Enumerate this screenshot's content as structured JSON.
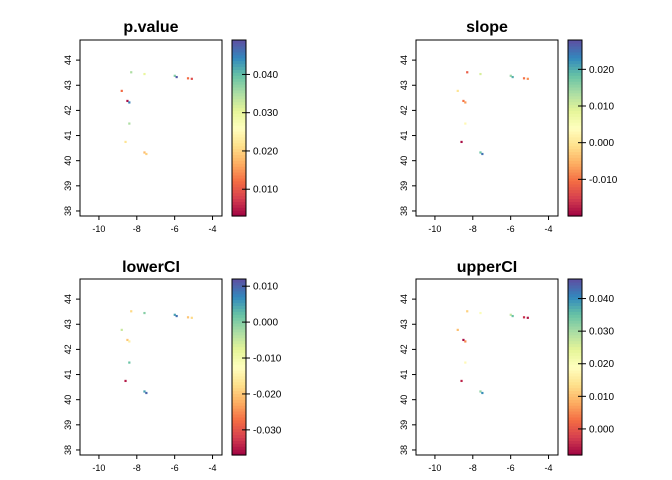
{
  "chart_data": [
    {
      "type": "heatmap",
      "title": "p.value",
      "xlim": [
        -11,
        -3.5
      ],
      "ylim": [
        37.8,
        44.8
      ],
      "xticks": [
        -10,
        -8,
        -6,
        -4
      ],
      "yticks": [
        38,
        39,
        40,
        41,
        42,
        43,
        44
      ],
      "colorbar": {
        "range": [
          0.003,
          0.049
        ],
        "ticks": [
          0.01,
          0.02,
          0.03,
          0.04
        ],
        "tick_labels": [
          "0.010",
          "0.020",
          "0.030",
          "0.040"
        ]
      },
      "points": [
        {
          "x": -8.3,
          "y": 43.52,
          "value": 0.035
        },
        {
          "x": -7.6,
          "y": 43.45,
          "value": 0.03
        },
        {
          "x": -6.0,
          "y": 43.38,
          "value": 0.038
        },
        {
          "x": -5.9,
          "y": 43.33,
          "value": 0.048
        },
        {
          "x": -5.3,
          "y": 43.28,
          "value": 0.012
        },
        {
          "x": -5.1,
          "y": 43.26,
          "value": 0.009
        },
        {
          "x": -8.8,
          "y": 42.78,
          "value": 0.012
        },
        {
          "x": -8.5,
          "y": 42.38,
          "value": 0.004
        },
        {
          "x": -8.4,
          "y": 42.32,
          "value": 0.045
        },
        {
          "x": -8.4,
          "y": 41.48,
          "value": 0.035
        },
        {
          "x": -8.6,
          "y": 40.75,
          "value": 0.022
        },
        {
          "x": -7.6,
          "y": 40.33,
          "value": 0.018
        },
        {
          "x": -7.5,
          "y": 40.27,
          "value": 0.02
        }
      ]
    },
    {
      "type": "heatmap",
      "title": "slope",
      "xlim": [
        -11,
        -3.5
      ],
      "ylim": [
        37.8,
        44.8
      ],
      "xticks": [
        -10,
        -8,
        -6,
        -4
      ],
      "yticks": [
        38,
        39,
        40,
        41,
        42,
        43,
        44
      ],
      "colorbar": {
        "range": [
          -0.02,
          0.028
        ],
        "ticks": [
          -0.01,
          0.0,
          0.01,
          0.02
        ],
        "tick_labels": [
          "-0.010",
          "0.000",
          "0.010",
          "0.020"
        ]
      },
      "points": [
        {
          "x": -8.3,
          "y": 43.52,
          "value": -0.012
        },
        {
          "x": -7.6,
          "y": 43.45,
          "value": 0.01
        },
        {
          "x": -6.0,
          "y": 43.38,
          "value": 0.015
        },
        {
          "x": -5.9,
          "y": 43.33,
          "value": 0.02
        },
        {
          "x": -5.3,
          "y": 43.28,
          "value": -0.01
        },
        {
          "x": -5.1,
          "y": 43.26,
          "value": -0.008
        },
        {
          "x": -8.8,
          "y": 42.78,
          "value": 0.0
        },
        {
          "x": -8.5,
          "y": 42.38,
          "value": -0.01
        },
        {
          "x": -8.4,
          "y": 42.32,
          "value": -0.007
        },
        {
          "x": -8.4,
          "y": 41.48,
          "value": 0.003
        },
        {
          "x": -8.6,
          "y": 40.75,
          "value": -0.019
        },
        {
          "x": -7.6,
          "y": 40.33,
          "value": 0.018
        },
        {
          "x": -7.5,
          "y": 40.27,
          "value": 0.025
        }
      ]
    },
    {
      "type": "heatmap",
      "title": "lowerCI",
      "xlim": [
        -11,
        -3.5
      ],
      "ylim": [
        37.8,
        44.8
      ],
      "xticks": [
        -10,
        -8,
        -6,
        -4
      ],
      "yticks": [
        38,
        39,
        40,
        41,
        42,
        43,
        44
      ],
      "colorbar": {
        "range": [
          -0.037,
          0.012
        ],
        "ticks": [
          -0.03,
          -0.02,
          -0.01,
          0.0,
          0.01
        ],
        "tick_labels": [
          "-0.030",
          "-0.020",
          "-0.010",
          "0.000",
          "0.010"
        ]
      },
      "points": [
        {
          "x": -8.3,
          "y": 43.52,
          "value": -0.018
        },
        {
          "x": -7.6,
          "y": 43.45,
          "value": 0.0
        },
        {
          "x": -6.0,
          "y": 43.38,
          "value": 0.005
        },
        {
          "x": -5.9,
          "y": 43.33,
          "value": 0.009
        },
        {
          "x": -5.3,
          "y": 43.28,
          "value": -0.02
        },
        {
          "x": -5.1,
          "y": 43.26,
          "value": -0.018
        },
        {
          "x": -8.8,
          "y": 42.78,
          "value": -0.005
        },
        {
          "x": -8.5,
          "y": 42.38,
          "value": -0.02
        },
        {
          "x": -8.4,
          "y": 42.32,
          "value": -0.015
        },
        {
          "x": -8.4,
          "y": 41.48,
          "value": 0.002
        },
        {
          "x": -8.6,
          "y": 40.75,
          "value": -0.035
        },
        {
          "x": -7.6,
          "y": 40.33,
          "value": 0.005
        },
        {
          "x": -7.5,
          "y": 40.27,
          "value": 0.01
        }
      ]
    },
    {
      "type": "heatmap",
      "title": "upperCI",
      "xlim": [
        -11,
        -3.5
      ],
      "ylim": [
        37.8,
        44.8
      ],
      "xticks": [
        -10,
        -8,
        -6,
        -4
      ],
      "yticks": [
        38,
        39,
        40,
        41,
        42,
        43,
        44
      ],
      "colorbar": {
        "range": [
          -0.008,
          0.046
        ],
        "ticks": [
          0.0,
          0.01,
          0.02,
          0.03,
          0.04
        ],
        "tick_labels": [
          "0.000",
          "0.010",
          "0.020",
          "0.030",
          "0.040"
        ]
      },
      "points": [
        {
          "x": -8.3,
          "y": 43.52,
          "value": 0.012
        },
        {
          "x": -7.6,
          "y": 43.45,
          "value": 0.02
        },
        {
          "x": -6.0,
          "y": 43.38,
          "value": 0.028
        },
        {
          "x": -5.9,
          "y": 43.33,
          "value": 0.035
        },
        {
          "x": -5.3,
          "y": 43.28,
          "value": -0.004
        },
        {
          "x": -5.1,
          "y": 43.26,
          "value": -0.006
        },
        {
          "x": -8.8,
          "y": 42.78,
          "value": 0.01
        },
        {
          "x": -8.5,
          "y": 42.38,
          "value": -0.007
        },
        {
          "x": -8.4,
          "y": 42.32,
          "value": 0.005
        },
        {
          "x": -8.4,
          "y": 41.48,
          "value": 0.018
        },
        {
          "x": -8.6,
          "y": 40.75,
          "value": -0.005
        },
        {
          "x": -7.6,
          "y": 40.33,
          "value": 0.032
        },
        {
          "x": -7.5,
          "y": 40.27,
          "value": 0.04
        }
      ]
    }
  ],
  "colors": {
    "palette": [
      "#9E0142",
      "#D53E4F",
      "#F46D43",
      "#FDAE61",
      "#FEE08B",
      "#FFFFBF",
      "#E6F598",
      "#ABDDA4",
      "#66C2A5",
      "#3288BD",
      "#5E4FA2"
    ],
    "axis": "#000000",
    "background": "#ffffff"
  }
}
